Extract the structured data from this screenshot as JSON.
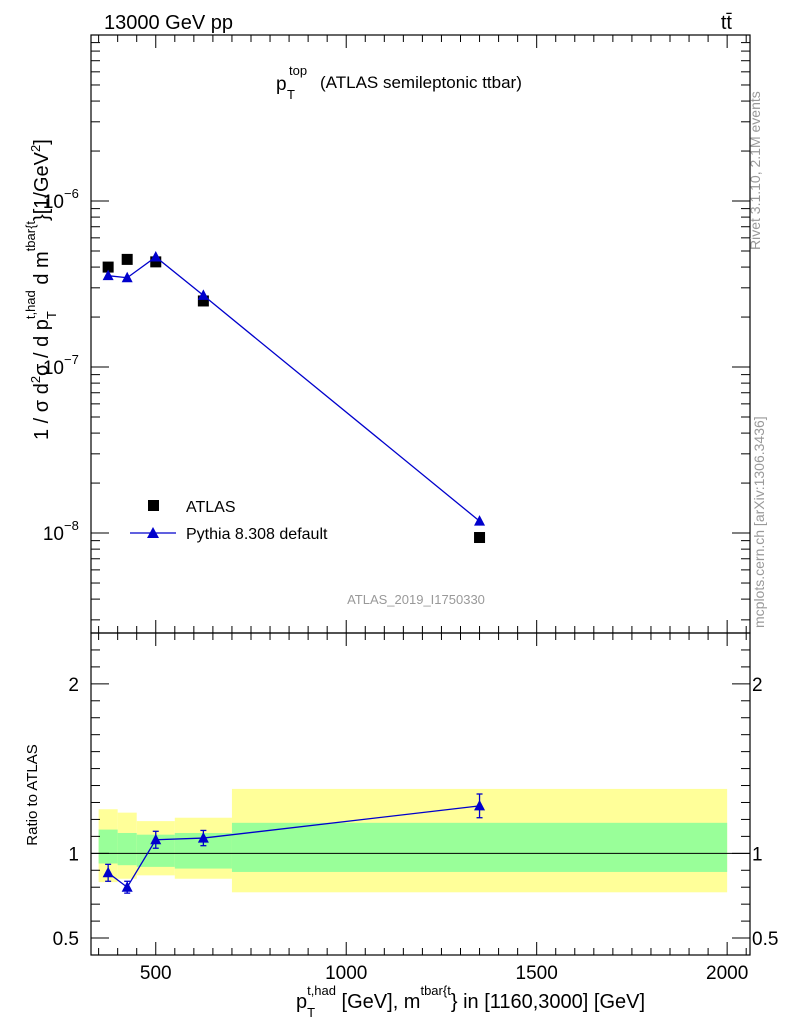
{
  "header": {
    "left": "13000 GeV pp",
    "right": "tt̄"
  },
  "watermark": {
    "rivet": "Rivet 3.1.10,  2.1M events",
    "site": "mcplots.cern.ch [arXiv:1306.3436]"
  },
  "chart_data": [
    {
      "type": "scatter",
      "title": "p_T^top (ATLAS semileptonic ttbar)",
      "analysis_id": "ATLAS_2019_I1750330",
      "ylabel": "1 / σ d²σ / d p_T^{t,had} d m^{tbar{t}} [1/GeV²]",
      "xlabel": "p_T^{t,had} [GeV], m^{tbar{t}} in [1160,3000] [GeV]",
      "xlim": [
        330,
        2060
      ],
      "ylim": [
        2.5e-09,
        1e-05
      ],
      "yscale": "log",
      "yticks": [
        {
          "value": 1e-08,
          "mant": "10",
          "exp": "−8"
        },
        {
          "value": 1e-07,
          "mant": "10",
          "exp": "−7"
        },
        {
          "value": 1e-06,
          "mant": "10",
          "exp": "−6"
        }
      ],
      "legend_position": "bottom-left",
      "series": [
        {
          "name": "ATLAS",
          "marker": "square",
          "color": "#000000",
          "x": [
            375,
            425,
            500,
            625,
            1350
          ],
          "y": [
            4e-07,
            4.45e-07,
            4.3e-07,
            2.5e-07,
            9.4e-09
          ]
        },
        {
          "name": "Pythia 8.308 default",
          "marker": "triangle",
          "color": "#0000cc",
          "x": [
            375,
            425,
            500,
            625,
            1350
          ],
          "y": [
            3.55e-07,
            3.45e-07,
            4.6e-07,
            2.7e-07,
            1.18e-08
          ],
          "yerr": [
            1.4e-08,
            1.4e-08,
            2e-08,
            1.2e-08,
            7e-10
          ]
        }
      ]
    },
    {
      "type": "line",
      "ylabel": "Ratio to ATLAS",
      "xlim": [
        330,
        2060
      ],
      "ylim": [
        0.4,
        2.3
      ],
      "xticks": [
        500,
        1000,
        1500,
        2000
      ],
      "yticks": [
        0.5,
        1,
        2
      ],
      "bins": [
        350,
        400,
        450,
        550,
        700,
        2000
      ],
      "band_inner": {
        "color": "#99ff99",
        "lo": [
          0.94,
          0.93,
          0.92,
          0.91,
          0.89
        ],
        "hi": [
          1.14,
          1.12,
          1.11,
          1.12,
          1.18
        ]
      },
      "band_outer": {
        "color": "#ffff99",
        "lo": [
          0.83,
          0.85,
          0.87,
          0.85,
          0.77
        ],
        "hi": [
          1.26,
          1.24,
          1.19,
          1.21,
          1.38
        ]
      },
      "series": [
        {
          "name": "Pythia 8.308 default",
          "color": "#0000cc",
          "x": [
            375,
            425,
            500,
            625,
            1350
          ],
          "y": [
            0.885,
            0.8,
            1.08,
            1.09,
            1.28
          ],
          "yerr": [
            0.05,
            0.035,
            0.05,
            0.045,
            0.07
          ]
        }
      ]
    }
  ]
}
